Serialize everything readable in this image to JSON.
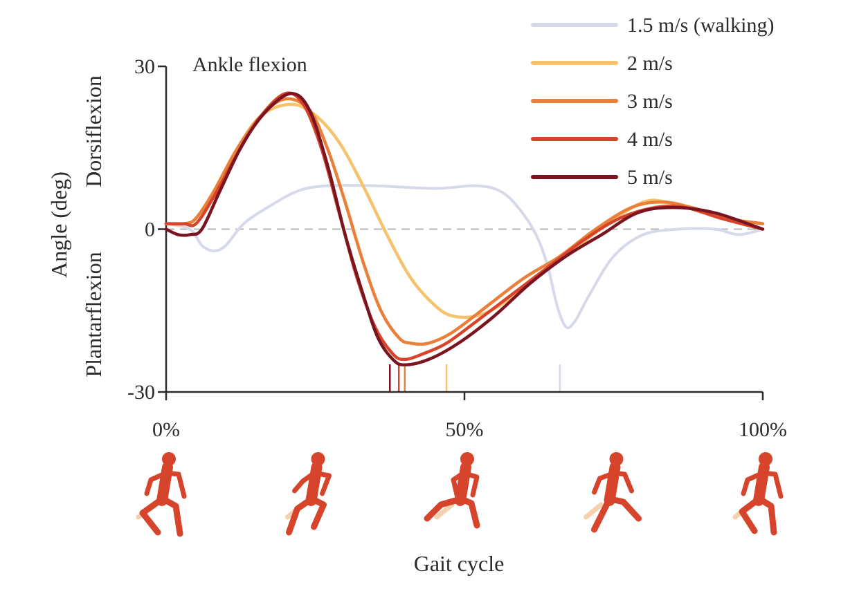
{
  "chart_data": {
    "type": "line",
    "title": "Ankle flexion",
    "xlabel": "Gait cycle",
    "ylabel": "Angle (deg)",
    "ylabel_upper": "Dorsiflexion",
    "ylabel_lower": "Plantarflexion",
    "xlim": [
      0,
      100
    ],
    "ylim": [
      -30,
      30
    ],
    "x_ticks": [
      {
        "value": 0,
        "label": "0%"
      },
      {
        "value": 50,
        "label": "50%"
      },
      {
        "value": 100,
        "label": "100%"
      }
    ],
    "y_ticks": [
      {
        "value": 30,
        "label": "30"
      },
      {
        "value": 0,
        "label": "0"
      },
      {
        "value": -30,
        "label": "-30"
      }
    ],
    "reference_line": {
      "y": 0,
      "style": "dashed",
      "color": "#b8b8b8"
    },
    "legend_position": "top-right",
    "series": [
      {
        "name": "1.5 m/s (walking)",
        "color": "#d6d9ea",
        "toe_off": 66,
        "points": [
          [
            0,
            1
          ],
          [
            4,
            0
          ],
          [
            6,
            -3
          ],
          [
            8,
            -4
          ],
          [
            10,
            -3
          ],
          [
            13,
            1
          ],
          [
            17,
            4
          ],
          [
            22,
            7
          ],
          [
            27,
            8
          ],
          [
            35,
            8
          ],
          [
            45,
            7.5
          ],
          [
            52,
            8
          ],
          [
            56,
            7
          ],
          [
            59,
            4
          ],
          [
            62,
            -1
          ],
          [
            64,
            -7
          ],
          [
            65.5,
            -14
          ],
          [
            67,
            -18
          ],
          [
            68.5,
            -17
          ],
          [
            71,
            -12
          ],
          [
            75,
            -5
          ],
          [
            80,
            -1
          ],
          [
            86,
            0
          ],
          [
            92,
            0
          ],
          [
            96,
            -1
          ],
          [
            100,
            0
          ]
        ]
      },
      {
        "name": "2 m/s",
        "color": "#f5c36e",
        "toe_off": 47,
        "points": [
          [
            0,
            1
          ],
          [
            3,
            1
          ],
          [
            5,
            2
          ],
          [
            8,
            7
          ],
          [
            12,
            15
          ],
          [
            16,
            21
          ],
          [
            21,
            23
          ],
          [
            25,
            21
          ],
          [
            29,
            16
          ],
          [
            33,
            8
          ],
          [
            37,
            -1
          ],
          [
            41,
            -9
          ],
          [
            45,
            -14
          ],
          [
            48,
            -16
          ],
          [
            52,
            -16
          ],
          [
            56,
            -14
          ],
          [
            62,
            -9
          ],
          [
            68,
            -4
          ],
          [
            74,
            1
          ],
          [
            80,
            5
          ],
          [
            84,
            5
          ],
          [
            88,
            4
          ],
          [
            94,
            2
          ],
          [
            100,
            1
          ]
        ]
      },
      {
        "name": "3 m/s",
        "color": "#ea7f3a",
        "toe_off": 40,
        "points": [
          [
            0,
            1
          ],
          [
            3,
            1
          ],
          [
            5,
            2
          ],
          [
            8,
            7
          ],
          [
            12,
            15
          ],
          [
            16,
            21
          ],
          [
            20,
            24
          ],
          [
            24,
            22
          ],
          [
            27,
            15
          ],
          [
            30,
            5
          ],
          [
            33,
            -6
          ],
          [
            36,
            -15
          ],
          [
            39,
            -20
          ],
          [
            41,
            -21
          ],
          [
            44,
            -21
          ],
          [
            48,
            -19
          ],
          [
            54,
            -14
          ],
          [
            60,
            -9
          ],
          [
            66,
            -5
          ],
          [
            72,
            0
          ],
          [
            78,
            4
          ],
          [
            83,
            5
          ],
          [
            88,
            4
          ],
          [
            94,
            2
          ],
          [
            100,
            1
          ]
        ]
      },
      {
        "name": "4 m/s",
        "color": "#d6452b",
        "toe_off": 39,
        "points": [
          [
            0,
            1
          ],
          [
            3,
            1
          ],
          [
            5,
            1
          ],
          [
            8,
            6
          ],
          [
            12,
            14
          ],
          [
            16,
            21
          ],
          [
            20,
            25
          ],
          [
            23,
            23
          ],
          [
            26,
            15
          ],
          [
            29,
            3
          ],
          [
            32,
            -9
          ],
          [
            35,
            -18
          ],
          [
            38,
            -23
          ],
          [
            40,
            -24
          ],
          [
            43,
            -23
          ],
          [
            47,
            -21
          ],
          [
            52,
            -17
          ],
          [
            58,
            -12
          ],
          [
            64,
            -7
          ],
          [
            70,
            -2
          ],
          [
            76,
            2
          ],
          [
            82,
            4
          ],
          [
            87,
            4
          ],
          [
            93,
            2
          ],
          [
            100,
            0
          ]
        ]
      },
      {
        "name": "5 m/s",
        "color": "#7a1420",
        "toe_off": 37.5,
        "points": [
          [
            0,
            0
          ],
          [
            2,
            -1
          ],
          [
            4,
            -1
          ],
          [
            6,
            0
          ],
          [
            9,
            7
          ],
          [
            13,
            16
          ],
          [
            17,
            22
          ],
          [
            21,
            25
          ],
          [
            24,
            22
          ],
          [
            27,
            12
          ],
          [
            30,
            -1
          ],
          [
            33,
            -12
          ],
          [
            35.5,
            -20
          ],
          [
            38,
            -24
          ],
          [
            40,
            -25
          ],
          [
            44,
            -24
          ],
          [
            49,
            -21
          ],
          [
            55,
            -16
          ],
          [
            61,
            -10
          ],
          [
            67,
            -5
          ],
          [
            73,
            -1
          ],
          [
            79,
            3
          ],
          [
            85,
            4
          ],
          [
            92,
            3
          ],
          [
            100,
            0
          ]
        ]
      }
    ],
    "icons": [
      "runner-icon",
      "runner-icon",
      "runner-icon",
      "runner-icon",
      "runner-icon"
    ],
    "colors": {
      "runner": "#d6452b",
      "runner_trail": "#f5d1b0",
      "axis": "#2b2b2b"
    }
  }
}
